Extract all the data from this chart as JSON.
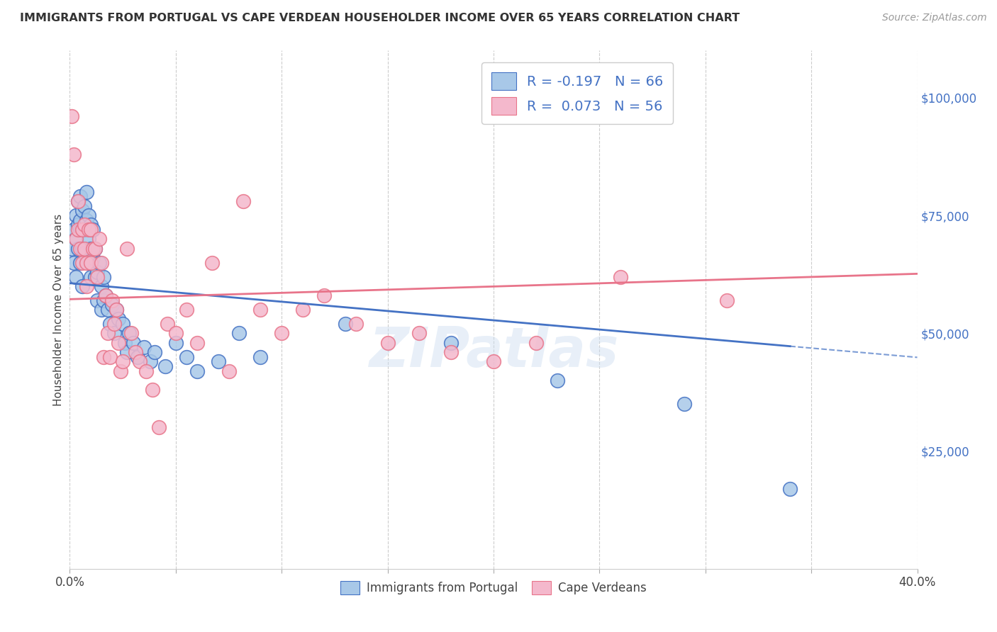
{
  "title": "IMMIGRANTS FROM PORTUGAL VS CAPE VERDEAN HOUSEHOLDER INCOME OVER 65 YEARS CORRELATION CHART",
  "source": "Source: ZipAtlas.com",
  "ylabel": "Householder Income Over 65 years",
  "right_ytick_labels": [
    "$25,000",
    "$50,000",
    "$75,000",
    "$100,000"
  ],
  "right_ytick_values": [
    25000,
    50000,
    75000,
    100000
  ],
  "xlim": [
    0.0,
    0.4
  ],
  "ylim": [
    0,
    110000
  ],
  "legend_label1": "R = -0.197   N = 66",
  "legend_label2": "R =  0.073   N = 56",
  "color_blue": "#a8c8e8",
  "color_pink": "#f4b8cc",
  "color_blue_dark": "#4472c4",
  "color_pink_dark": "#e8748a",
  "watermark": "ZIPatlas",
  "series1_R": -0.197,
  "series2_R": 0.073,
  "blue_x": [
    0.001,
    0.002,
    0.002,
    0.003,
    0.003,
    0.003,
    0.004,
    0.004,
    0.004,
    0.005,
    0.005,
    0.005,
    0.005,
    0.006,
    0.006,
    0.006,
    0.007,
    0.007,
    0.007,
    0.008,
    0.008,
    0.009,
    0.009,
    0.009,
    0.01,
    0.01,
    0.01,
    0.011,
    0.011,
    0.012,
    0.012,
    0.013,
    0.013,
    0.014,
    0.015,
    0.015,
    0.016,
    0.016,
    0.017,
    0.018,
    0.019,
    0.02,
    0.021,
    0.022,
    0.023,
    0.025,
    0.026,
    0.027,
    0.028,
    0.03,
    0.032,
    0.035,
    0.038,
    0.04,
    0.045,
    0.05,
    0.055,
    0.06,
    0.07,
    0.08,
    0.09,
    0.13,
    0.18,
    0.23,
    0.29,
    0.34
  ],
  "blue_y": [
    68000,
    72000,
    65000,
    70000,
    75000,
    62000,
    78000,
    68000,
    73000,
    79000,
    74000,
    72000,
    65000,
    76000,
    68000,
    60000,
    77000,
    72000,
    67000,
    80000,
    74000,
    75000,
    70000,
    65000,
    73000,
    68000,
    62000,
    72000,
    66000,
    68000,
    62000,
    63000,
    57000,
    65000,
    60000,
    55000,
    62000,
    57000,
    58000,
    55000,
    52000,
    56000,
    50000,
    55000,
    53000,
    52000,
    48000,
    46000,
    50000,
    48000,
    45000,
    47000,
    44000,
    46000,
    43000,
    48000,
    45000,
    42000,
    44000,
    50000,
    45000,
    52000,
    48000,
    40000,
    35000,
    17000
  ],
  "pink_x": [
    0.001,
    0.002,
    0.003,
    0.004,
    0.004,
    0.005,
    0.006,
    0.006,
    0.007,
    0.007,
    0.008,
    0.008,
    0.009,
    0.01,
    0.01,
    0.011,
    0.012,
    0.013,
    0.014,
    0.015,
    0.016,
    0.017,
    0.018,
    0.019,
    0.02,
    0.021,
    0.022,
    0.023,
    0.024,
    0.025,
    0.027,
    0.029,
    0.031,
    0.033,
    0.036,
    0.039,
    0.042,
    0.046,
    0.05,
    0.055,
    0.06,
    0.067,
    0.075,
    0.082,
    0.09,
    0.1,
    0.11,
    0.12,
    0.135,
    0.15,
    0.165,
    0.18,
    0.2,
    0.22,
    0.26,
    0.31
  ],
  "pink_y": [
    96000,
    88000,
    70000,
    72000,
    78000,
    68000,
    72000,
    65000,
    73000,
    68000,
    65000,
    60000,
    72000,
    65000,
    72000,
    68000,
    68000,
    62000,
    70000,
    65000,
    45000,
    58000,
    50000,
    45000,
    57000,
    52000,
    55000,
    48000,
    42000,
    44000,
    68000,
    50000,
    46000,
    44000,
    42000,
    38000,
    30000,
    52000,
    50000,
    55000,
    48000,
    65000,
    42000,
    78000,
    55000,
    50000,
    55000,
    58000,
    52000,
    48000,
    50000,
    46000,
    44000,
    48000,
    62000,
    57000
  ]
}
